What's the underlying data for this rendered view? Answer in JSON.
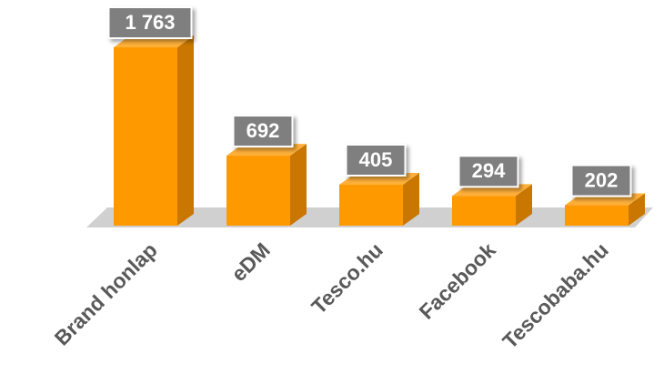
{
  "chart_data": {
    "type": "bar3d",
    "categories": [
      "Brand honlap",
      "eDM",
      "Tesco.hu",
      "Facebook",
      "Tescobaba.hu"
    ],
    "values": [
      1763,
      692,
      405,
      294,
      202
    ],
    "value_labels": [
      "1 763",
      "692",
      "405",
      "294",
      "202"
    ],
    "color": "#ff9900"
  }
}
